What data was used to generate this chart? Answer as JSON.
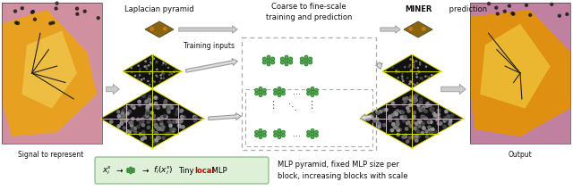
{
  "title_top_center": "Coarse to fine-scale\ntraining and prediction",
  "title_laplacian": "Laplacian pyramid",
  "title_miner": "MINER prediction",
  "label_training": "Training inputs",
  "label_signal": "Signal to represent",
  "label_output": "Output",
  "desc_text": "MLP pyramid, fixed MLP size per\nblock, increasing blocks with scale",
  "bg_color": "#ffffff",
  "formula_box_color": "#dff0d8",
  "formula_box_edge": "#88bb88",
  "grid_color_yellow": "#dddd00",
  "grid_bg": "#111111",
  "mlp_color": "#55aa55",
  "arrow_color": "#bbbbbb",
  "arrow_edge": "#999999",
  "dashed_color": "#aaaaaa",
  "text_color": "#111111",
  "local_color": "#cc0000",
  "thumb_color": "#8B6914",
  "figsize": [
    6.4,
    2.13
  ],
  "dpi": 100
}
